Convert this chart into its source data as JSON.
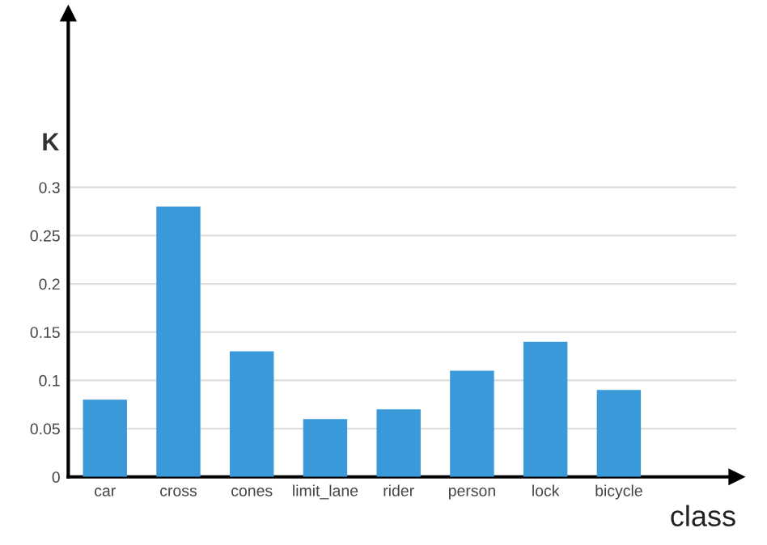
{
  "chart_data": {
    "type": "bar",
    "xlabel": "class",
    "ylabel": "K",
    "categories": [
      "car",
      "cross",
      "cones",
      "limit_lane",
      "rider",
      "person",
      "lock",
      "bicycle"
    ],
    "values": [
      0.08,
      0.28,
      0.13,
      0.06,
      0.07,
      0.11,
      0.14,
      0.09
    ],
    "color": "#3a9ad9",
    "ylim": [
      0,
      0.48
    ],
    "yticks": [
      0,
      0.05,
      0.1,
      0.15,
      0.2,
      0.25,
      0.3
    ],
    "grid": "y"
  }
}
